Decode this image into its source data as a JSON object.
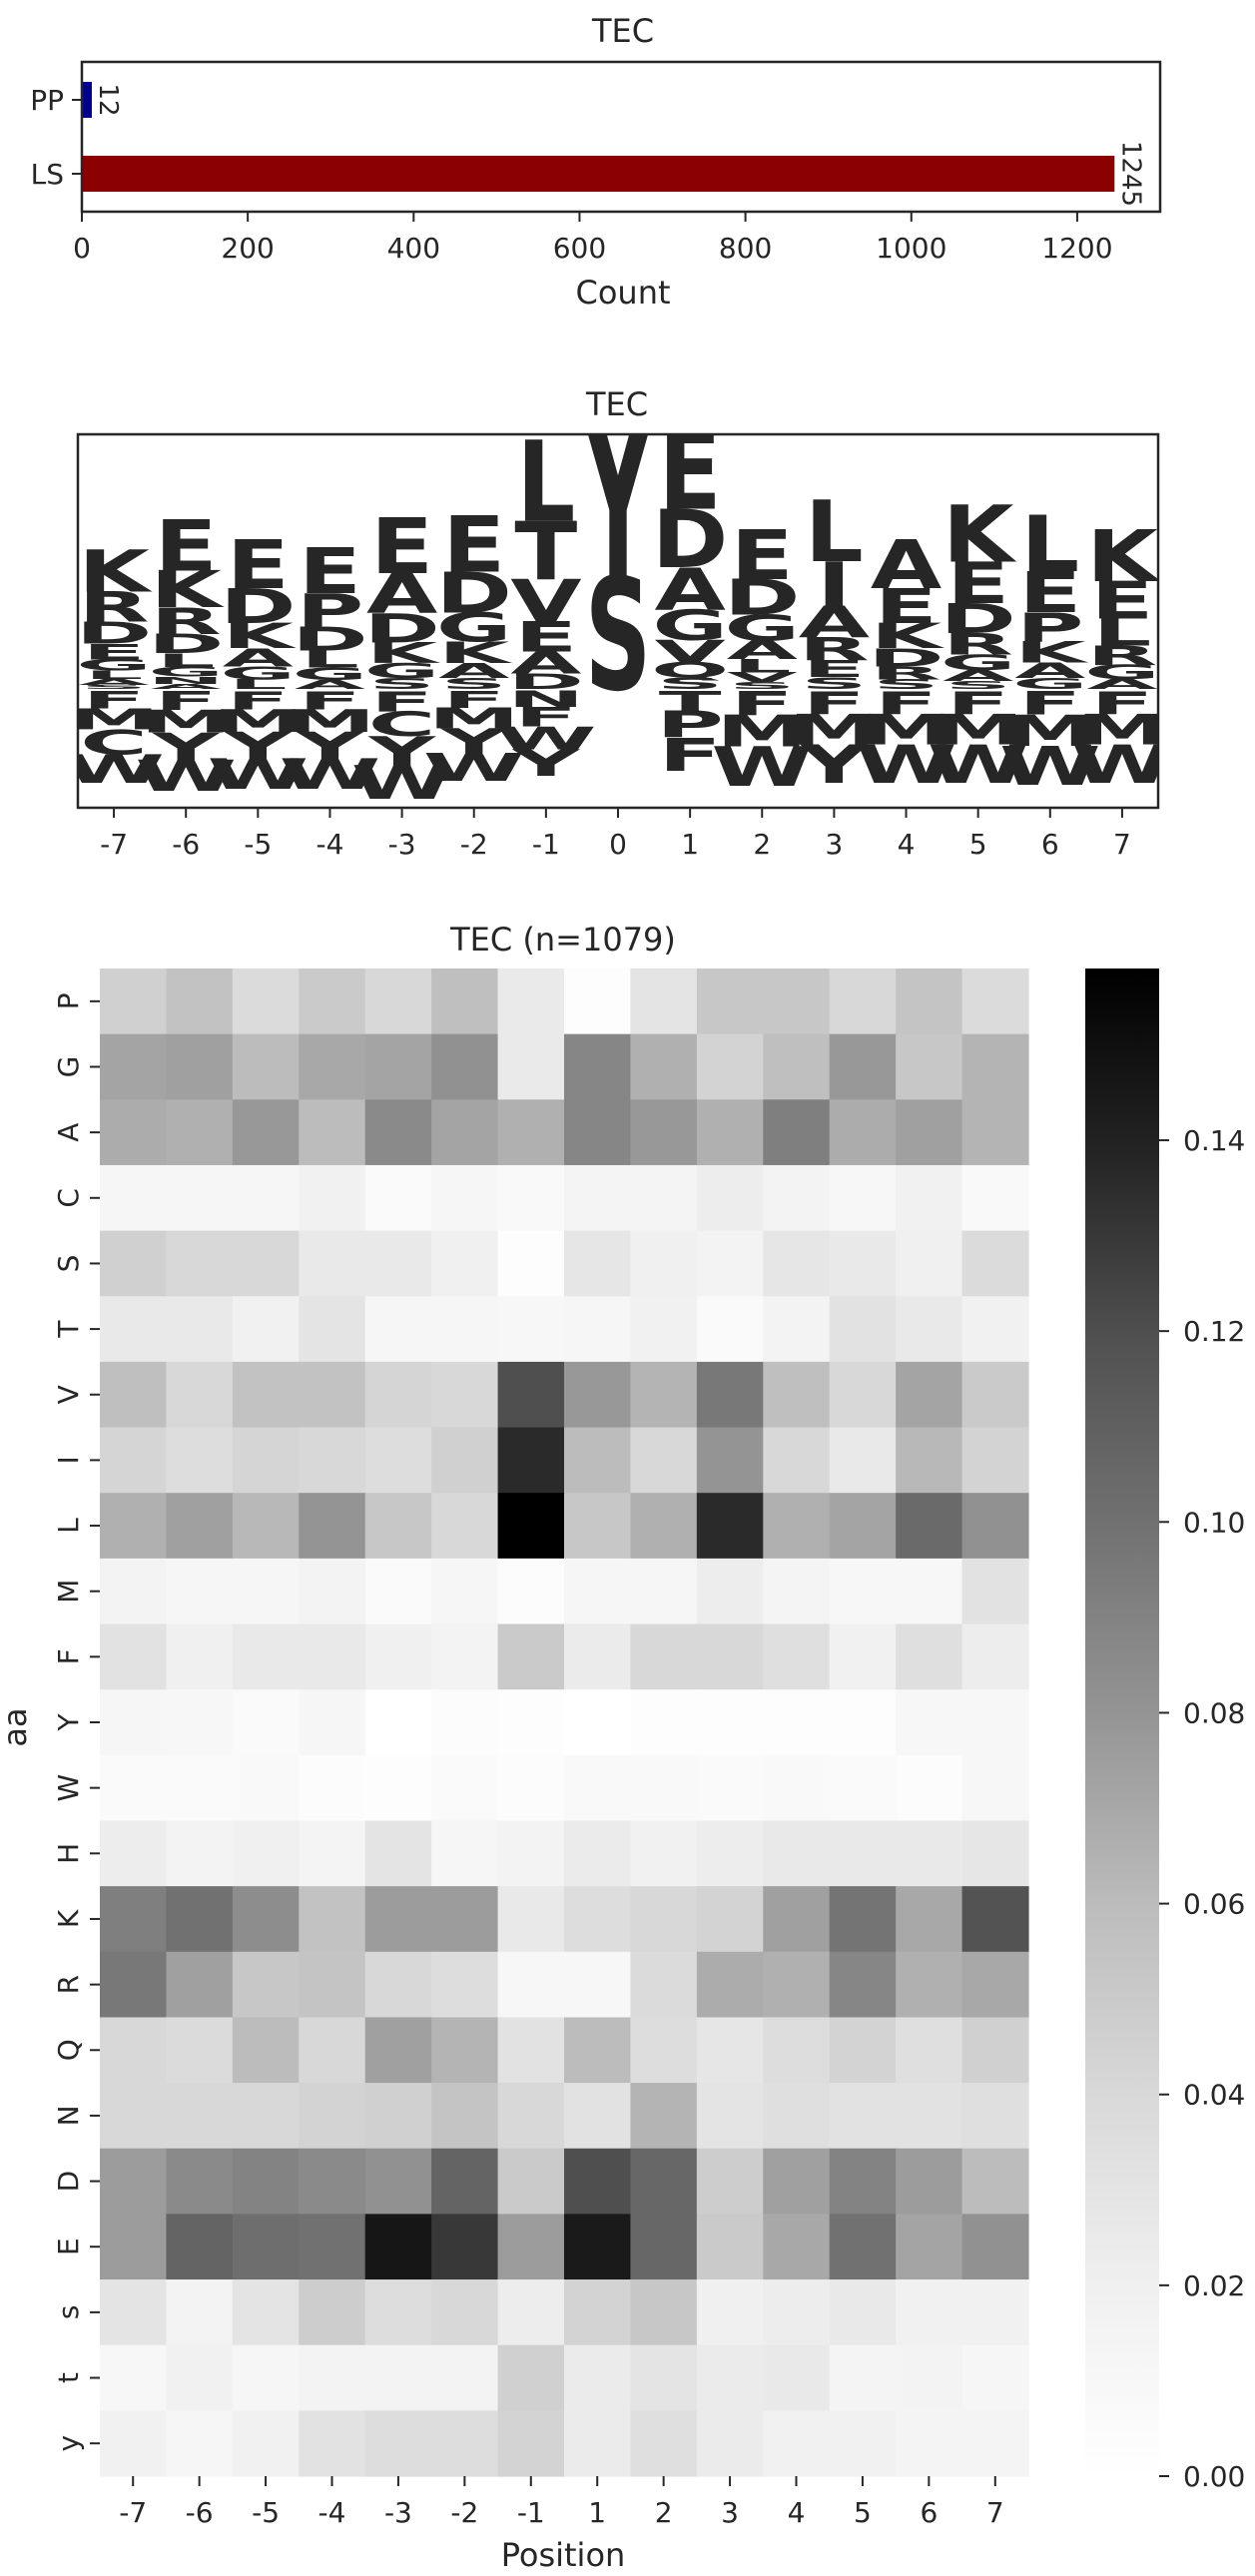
{
  "chart_data": [
    {
      "type": "bar",
      "orientation": "horizontal",
      "title": "TEC",
      "xlabel": "Count",
      "ylabel": "",
      "categories": [
        "PP",
        "LS"
      ],
      "values": [
        12,
        1245
      ],
      "value_labels": [
        "12",
        "1245"
      ],
      "colors": [
        "#00008b",
        "#8b0000"
      ],
      "xlim": [
        0,
        1300
      ],
      "xticks": [
        "0",
        "200",
        "400",
        "600",
        "800",
        "1000",
        "1200"
      ]
    },
    {
      "type": "logo",
      "title": "TEC",
      "x": [
        "-7",
        "-6",
        "-5",
        "-4",
        "-3",
        "-2",
        "-1",
        "0",
        "1",
        "2",
        "3",
        "4",
        "5",
        "6",
        "7"
      ],
      "above": [
        [
          "K",
          "R",
          "D",
          "E",
          "G",
          "L",
          "A",
          "S"
        ],
        [
          "E",
          "K",
          "R",
          "D",
          "L",
          "G",
          "N",
          "A"
        ],
        [
          "E",
          "D",
          "K",
          "A",
          "G",
          "L"
        ],
        [
          "E",
          "P",
          "D",
          "L",
          "G",
          "A"
        ],
        [
          "E",
          "A",
          "D",
          "K",
          "G",
          "S"
        ],
        [
          "E",
          "D",
          "G",
          "K",
          "A",
          "S"
        ],
        [
          "L",
          "T",
          "V",
          "E",
          "A",
          "D"
        ],
        [
          "Y",
          "S"
        ],
        [
          "E",
          "D",
          "A",
          "G",
          "V",
          "Q",
          "S"
        ],
        [
          "E",
          "D",
          "G",
          "A",
          "L",
          "V",
          "S"
        ],
        [
          "L",
          "I",
          "A",
          "R",
          "E",
          "S"
        ],
        [
          "A",
          "E",
          "K",
          "D",
          "R",
          "S"
        ],
        [
          "K",
          "E",
          "D",
          "R",
          "G",
          "A",
          "S"
        ],
        [
          "L",
          "E",
          "P",
          "K",
          "A",
          "G"
        ],
        [
          "K",
          "E",
          "L",
          "R",
          "G",
          "A"
        ]
      ],
      "below": [
        [
          "F",
          "M",
          "C",
          "W"
        ],
        [
          "F",
          "M",
          "Y",
          "W"
        ],
        [
          "F",
          "M",
          "Y",
          "W"
        ],
        [
          "F",
          "M",
          "Y",
          "W"
        ],
        [
          "F",
          "C",
          "Y",
          "W"
        ],
        [
          "F",
          "M",
          "Y",
          "W"
        ],
        [
          "N",
          "F",
          "W",
          "Y"
        ],
        [],
        [
          "T",
          "P",
          "F"
        ],
        [
          "F",
          "M",
          "W"
        ],
        [
          "F",
          "M",
          "Y"
        ],
        [
          "F",
          "M",
          "W"
        ],
        [
          "F",
          "M",
          "W"
        ],
        [
          "F",
          "M",
          "W"
        ],
        [
          "F",
          "M",
          "W"
        ]
      ],
      "letter_colors": {
        "acidic": "#dc143c",
        "basic": "#0000ff",
        "polar": "#008000",
        "hydrophobic": "#daa520",
        "aromatic": "#8b4513",
        "other": "#9932cc",
        "proline": "#000000"
      }
    },
    {
      "type": "heatmap",
      "title": "TEC (n=1079)",
      "xlabel": "Position",
      "ylabel": "aa",
      "x": [
        "-7",
        "-6",
        "-5",
        "-4",
        "-3",
        "-2",
        "-1",
        "1",
        "2",
        "3",
        "4",
        "5",
        "6",
        "7"
      ],
      "y": [
        "P",
        "G",
        "A",
        "C",
        "S",
        "T",
        "V",
        "I",
        "L",
        "M",
        "F",
        "Y",
        "W",
        "H",
        "K",
        "R",
        "Q",
        "N",
        "D",
        "E",
        "s",
        "t",
        "y"
      ],
      "z": [
        [
          0.046,
          0.056,
          0.038,
          0.05,
          0.04,
          0.058,
          0.025,
          0.002,
          0.03,
          0.052,
          0.052,
          0.04,
          0.054,
          0.038
        ],
        [
          0.072,
          0.074,
          0.06,
          0.07,
          0.072,
          0.082,
          0.025,
          0.088,
          0.066,
          0.044,
          0.058,
          0.078,
          0.052,
          0.064
        ],
        [
          0.068,
          0.066,
          0.078,
          0.06,
          0.086,
          0.072,
          0.066,
          0.088,
          0.078,
          0.066,
          0.092,
          0.068,
          0.074,
          0.064
        ],
        [
          0.012,
          0.012,
          0.012,
          0.018,
          0.006,
          0.012,
          0.008,
          0.014,
          0.014,
          0.022,
          0.016,
          0.01,
          0.018,
          0.008
        ],
        [
          0.046,
          0.04,
          0.04,
          0.026,
          0.026,
          0.02,
          0.003,
          0.028,
          0.02,
          0.016,
          0.028,
          0.026,
          0.02,
          0.038
        ],
        [
          0.026,
          0.026,
          0.018,
          0.03,
          0.012,
          0.012,
          0.01,
          0.012,
          0.018,
          0.006,
          0.016,
          0.032,
          0.026,
          0.018
        ],
        [
          0.058,
          0.04,
          0.056,
          0.056,
          0.042,
          0.04,
          0.12,
          0.078,
          0.064,
          0.096,
          0.058,
          0.04,
          0.072,
          0.05
        ],
        [
          0.042,
          0.036,
          0.042,
          0.04,
          0.036,
          0.046,
          0.136,
          0.06,
          0.04,
          0.08,
          0.04,
          0.026,
          0.062,
          0.044
        ],
        [
          0.066,
          0.074,
          0.062,
          0.08,
          0.052,
          0.04,
          0.158,
          0.052,
          0.066,
          0.136,
          0.066,
          0.072,
          0.104,
          0.082
        ],
        [
          0.016,
          0.012,
          0.012,
          0.016,
          0.006,
          0.012,
          0.004,
          0.012,
          0.012,
          0.022,
          0.014,
          0.01,
          0.01,
          0.032
        ],
        [
          0.032,
          0.02,
          0.026,
          0.026,
          0.02,
          0.016,
          0.05,
          0.024,
          0.04,
          0.04,
          0.034,
          0.018,
          0.034,
          0.022
        ],
        [
          0.012,
          0.01,
          0.006,
          0.012,
          0.0,
          0.004,
          0.002,
          0.0,
          0.002,
          0.002,
          0.002,
          0.002,
          0.01,
          0.01
        ],
        [
          0.006,
          0.006,
          0.008,
          0.004,
          0.002,
          0.006,
          0.004,
          0.008,
          0.008,
          0.006,
          0.008,
          0.006,
          0.004,
          0.01
        ],
        [
          0.022,
          0.016,
          0.02,
          0.014,
          0.03,
          0.012,
          0.016,
          0.024,
          0.018,
          0.022,
          0.026,
          0.026,
          0.026,
          0.028
        ],
        [
          0.092,
          0.1,
          0.084,
          0.056,
          0.076,
          0.076,
          0.026,
          0.036,
          0.04,
          0.044,
          0.074,
          0.098,
          0.07,
          0.118
        ],
        [
          0.096,
          0.074,
          0.052,
          0.054,
          0.04,
          0.036,
          0.01,
          0.01,
          0.038,
          0.068,
          0.066,
          0.088,
          0.066,
          0.07
        ],
        [
          0.04,
          0.038,
          0.06,
          0.04,
          0.074,
          0.064,
          0.032,
          0.06,
          0.036,
          0.028,
          0.036,
          0.044,
          0.034,
          0.046
        ],
        [
          0.04,
          0.04,
          0.04,
          0.044,
          0.046,
          0.054,
          0.04,
          0.032,
          0.064,
          0.03,
          0.034,
          0.032,
          0.032,
          0.034
        ],
        [
          0.076,
          0.086,
          0.09,
          0.086,
          0.082,
          0.108,
          0.05,
          0.12,
          0.106,
          0.048,
          0.074,
          0.09,
          0.076,
          0.06
        ],
        [
          0.076,
          0.108,
          0.102,
          0.1,
          0.146,
          0.13,
          0.076,
          0.144,
          0.106,
          0.05,
          0.07,
          0.1,
          0.072,
          0.082
        ],
        [
          0.03,
          0.016,
          0.03,
          0.048,
          0.036,
          0.04,
          0.022,
          0.044,
          0.052,
          0.02,
          0.022,
          0.026,
          0.018,
          0.018
        ],
        [
          0.01,
          0.018,
          0.012,
          0.016,
          0.016,
          0.016,
          0.046,
          0.024,
          0.03,
          0.024,
          0.026,
          0.014,
          0.016,
          0.012
        ],
        [
          0.018,
          0.012,
          0.018,
          0.032,
          0.036,
          0.036,
          0.044,
          0.024,
          0.034,
          0.024,
          0.018,
          0.018,
          0.014,
          0.014
        ]
      ],
      "zlim": [
        0,
        0.158
      ],
      "colorbar_ticks": [
        "0.00",
        "0.02",
        "0.04",
        "0.06",
        "0.08",
        "0.10",
        "0.12",
        "0.14"
      ],
      "colormap": "Greys"
    }
  ]
}
